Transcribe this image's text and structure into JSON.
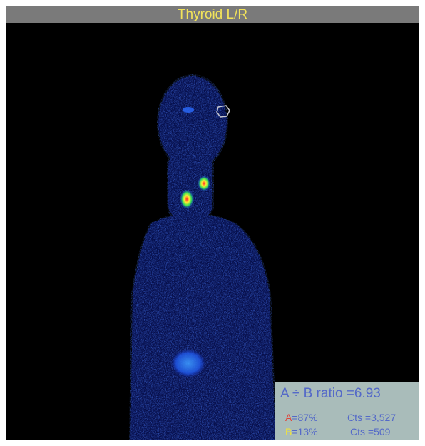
{
  "title": "Thyroid L/R",
  "ratio_text": "A ÷ B ratio =6.93",
  "rows": [
    {
      "label": "A",
      "percent": "=87%",
      "counts": "Cts =3,527"
    },
    {
      "label": "B",
      "percent": "=13%",
      "counts": "Cts =509"
    }
  ],
  "colors": {
    "title_text": "#f2e35a",
    "title_bar": "#7a7a7a",
    "background": "#000000",
    "panel": "#a9bcba",
    "panel_text": "#5469c8",
    "label_a": "#e0453a",
    "label_b": "#f0e33a"
  }
}
